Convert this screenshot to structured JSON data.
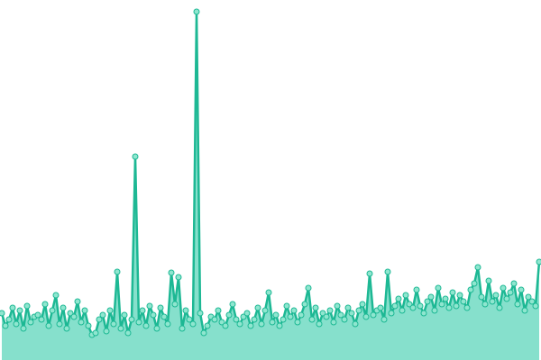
{
  "chart_data": {
    "type": "area",
    "values": [
      52,
      38,
      45,
      58,
      40,
      55,
      35,
      60,
      42,
      48,
      50,
      45,
      62,
      38,
      55,
      72,
      40,
      58,
      35,
      52,
      48,
      65,
      42,
      55,
      38,
      28,
      30,
      45,
      50,
      32,
      55,
      40,
      98,
      35,
      50,
      30,
      45,
      226,
      42,
      55,
      38,
      60,
      50,
      35,
      58,
      48,
      40,
      97,
      62,
      92,
      35,
      55,
      45,
      40,
      387,
      52,
      30,
      38,
      48,
      45,
      55,
      42,
      38,
      50,
      62,
      45,
      40,
      48,
      52,
      38,
      45,
      58,
      40,
      55,
      75,
      42,
      50,
      38,
      45,
      60,
      48,
      55,
      42,
      50,
      62,
      80,
      45,
      58,
      40,
      52,
      48,
      55,
      42,
      60,
      50,
      45,
      58,
      52,
      40,
      55,
      62,
      48,
      96,
      50,
      55,
      58,
      45,
      98,
      52,
      60,
      68,
      55,
      72,
      62,
      58,
      78,
      60,
      52,
      65,
      70,
      55,
      80,
      62,
      68,
      58,
      75,
      60,
      72,
      65,
      58,
      78,
      85,
      103,
      70,
      62,
      88,
      65,
      72,
      58,
      80,
      68,
      75,
      85,
      62,
      78,
      55,
      70,
      65,
      60,
      109
    ],
    "ylim": [
      0,
      400
    ],
    "color": "#1db894",
    "fill": "#86e0cc",
    "marker_fill": "#8fe6cf"
  }
}
